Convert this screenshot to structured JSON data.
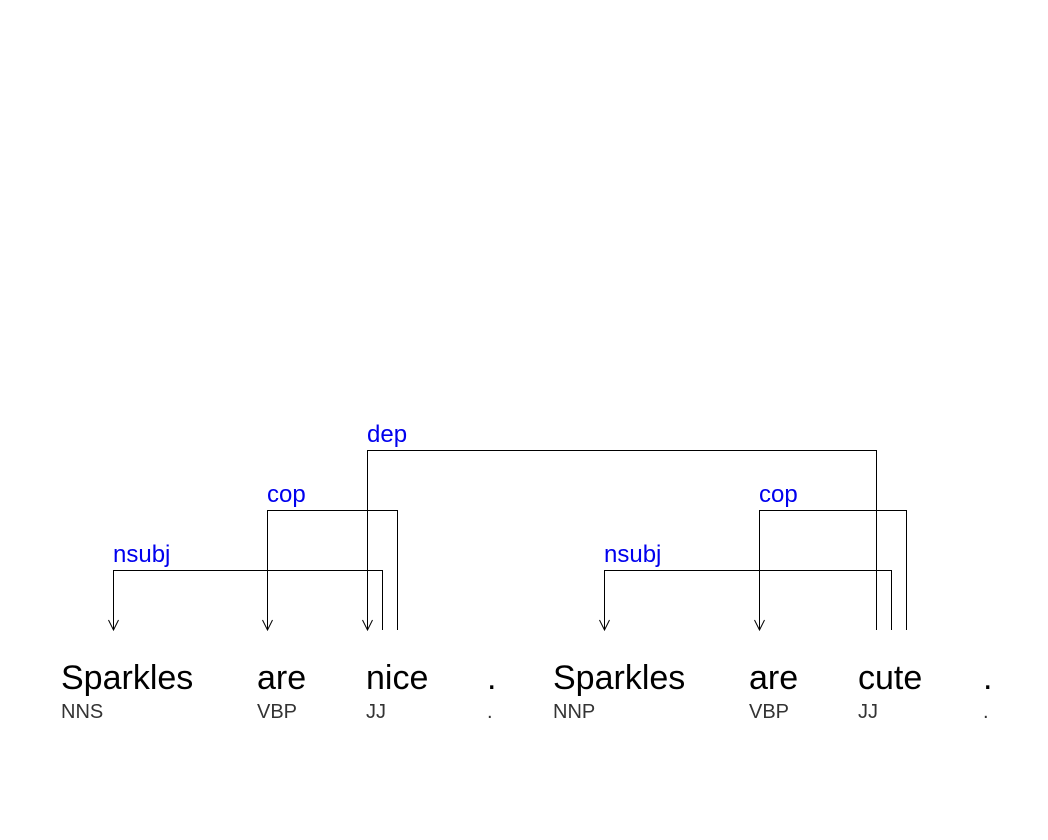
{
  "diagram": {
    "type": "dependency-parse",
    "colors": {
      "word": "#000000",
      "tag": "#333333",
      "relation_label": "#0000ee",
      "arc": "#000000"
    },
    "tokens": [
      {
        "word": "Sparkles",
        "tag": "NNS"
      },
      {
        "word": "are",
        "tag": "VBP"
      },
      {
        "word": "nice",
        "tag": "JJ"
      },
      {
        "word": ".",
        "tag": "."
      },
      {
        "word": "Sparkles",
        "tag": "NNP"
      },
      {
        "word": "are",
        "tag": "VBP"
      },
      {
        "word": "cute",
        "tag": "JJ"
      },
      {
        "word": ".",
        "tag": "."
      }
    ],
    "arcs": [
      {
        "label": "nsubj",
        "head": 2,
        "dependent": 0
      },
      {
        "label": "cop",
        "head": 2,
        "dependent": 1
      },
      {
        "label": "dep",
        "head": 6,
        "dependent": 2
      },
      {
        "label": "nsubj",
        "head": 6,
        "dependent": 4
      },
      {
        "label": "cop",
        "head": 6,
        "dependent": 5
      }
    ]
  }
}
